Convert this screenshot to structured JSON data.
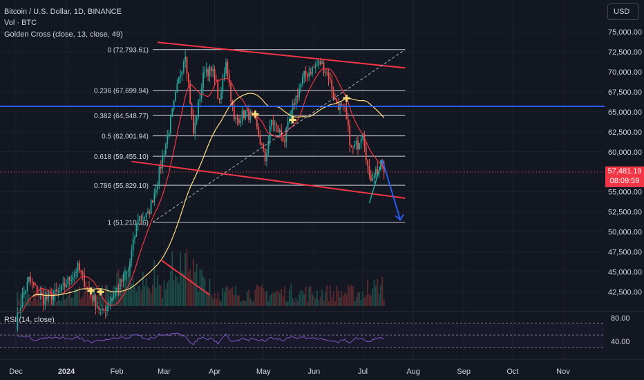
{
  "header": {
    "symbol_line": "Bitcoin / U.S. Dollar, 1D, BINANCE",
    "volume_line": "Vol · BTC",
    "indicator_line": "Golden Cross (close, 13, close, 49)",
    "currency": "USD"
  },
  "last_price": {
    "value": "57,481.19",
    "countdown": "08:09:59"
  },
  "rsi": {
    "label": "RSI (14, close)",
    "ticks": [
      "80.00",
      "40.00"
    ]
  },
  "chart_data": {
    "type": "candlestick",
    "title": "Bitcoin / U.S. Dollar, 1D, BINANCE",
    "y_ticks": [
      "75,000.00",
      "72,500.00",
      "70,000.00",
      "67,500.00",
      "65,000.00",
      "62,500.00",
      "60,000.00",
      "57,500.00",
      "55,000.00",
      "52,500.00",
      "50,000.00",
      "47,500.00",
      "45,000.00",
      "42,500.00"
    ],
    "y_values": [
      75000,
      72500,
      70000,
      67500,
      65000,
      62500,
      60000,
      57500,
      55000,
      52500,
      50000,
      47500,
      45000,
      42500
    ],
    "ylim": [
      40800,
      76400
    ],
    "x_ticks": [
      {
        "label": "Dec",
        "date": "2023-12-01",
        "bold": false
      },
      {
        "label": "2024",
        "date": "2024-01-01",
        "bold": true
      },
      {
        "label": "Feb",
        "date": "2024-02-01",
        "bold": false
      },
      {
        "label": "Mar",
        "date": "2024-03-01",
        "bold": false
      },
      {
        "label": "Apr",
        "date": "2024-04-01",
        "bold": false
      },
      {
        "label": "May",
        "date": "2024-05-01",
        "bold": false
      },
      {
        "label": "Jun",
        "date": "2024-06-01",
        "bold": false
      },
      {
        "label": "Jul",
        "date": "2024-07-01",
        "bold": false
      },
      {
        "label": "Aug",
        "date": "2024-08-01",
        "bold": false
      },
      {
        "label": "Sep",
        "date": "2024-09-01",
        "bold": false
      },
      {
        "label": "Oct",
        "date": "2024-10-01",
        "bold": false
      },
      {
        "label": "Nov",
        "date": "2024-11-01",
        "bold": false
      }
    ],
    "fib_levels": [
      {
        "label": "0 (72,793.61)",
        "value": 72793.61
      },
      {
        "label": "0.236 (67,699.94)",
        "value": 67699.94
      },
      {
        "label": "0.382 (64,548.77)",
        "value": 64548.77
      },
      {
        "label": "0.5 (62,001.94)",
        "value": 62001.94
      },
      {
        "label": "0.618 (59,455.10)",
        "value": 59455.1
      },
      {
        "label": "0.786 (55,829.10)",
        "value": 55829.1
      },
      {
        "label": "1 (51,210.26)",
        "value": 51210.26
      }
    ],
    "horizontal_line": {
      "value": 65700,
      "color": "#2962ff"
    },
    "last_price_value": 57481.19,
    "trend_lines": [
      {
        "name": "upper",
        "from": {
          "date": "2024-02-26",
          "y": 73700
        },
        "to": {
          "date": "2024-07-27",
          "y": 70500
        },
        "color": "#f23645"
      },
      {
        "name": "lower",
        "from": {
          "date": "2024-02-10",
          "y": 58800
        },
        "to": {
          "date": "2024-07-27",
          "y": 54200
        },
        "color": "#f23645"
      },
      {
        "name": "volume-trend",
        "from": {
          "date": "2024-02-28",
          "y": 46500
        },
        "to": {
          "date": "2024-03-29",
          "y": 42100
        },
        "color": "#f23645"
      }
    ],
    "dashed_line": {
      "from": {
        "date": "2024-02-23",
        "y": 51210
      },
      "to": {
        "date": "2024-07-27",
        "y": 72793
      }
    },
    "projection": [
      {
        "date": "2024-07-05",
        "y": 53600
      },
      {
        "date": "2024-07-13",
        "y": 59000
      },
      {
        "date": "2024-07-24",
        "y": 51500
      }
    ],
    "golden_cross_markers": [
      {
        "date": "2024-01-16",
        "y": 42600
      },
      {
        "date": "2024-01-22",
        "y": 42500
      },
      {
        "date": "2024-04-26",
        "y": 64700
      },
      {
        "date": "2024-05-19",
        "y": 64000
      },
      {
        "date": "2024-06-21",
        "y": 66700
      }
    ],
    "colors": {
      "up": "#26a69a",
      "down": "#ef5350",
      "ma_fast": "#f23645",
      "ma_slow": "#ffe082",
      "fib": "#d1d4dc",
      "rsi": "#7e57c2",
      "background": "#131722"
    }
  }
}
